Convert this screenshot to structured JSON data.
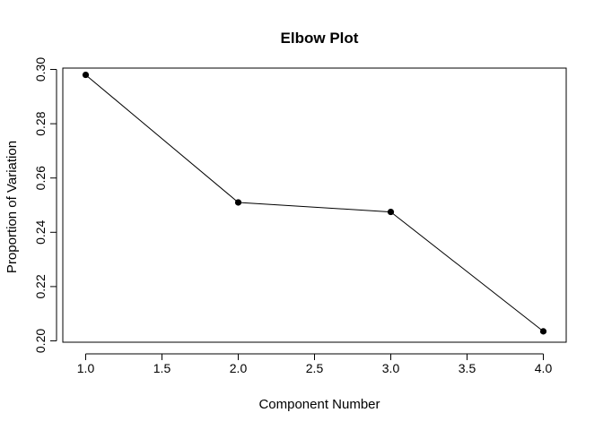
{
  "chart_data": {
    "type": "line",
    "title": "Elbow Plot",
    "xlabel": "Component Number",
    "ylabel": "Proportion of Variation",
    "x": [
      1.0,
      2.0,
      3.0,
      4.0
    ],
    "y": [
      0.298,
      0.251,
      0.2475,
      0.2035
    ],
    "xlim": [
      0.85,
      4.15
    ],
    "ylim": [
      0.1995,
      0.3005
    ],
    "xticks": [
      1.0,
      1.5,
      2.0,
      2.5,
      3.0,
      3.5,
      4.0
    ],
    "xtick_labels": [
      "1.0",
      "1.5",
      "2.0",
      "2.5",
      "3.0",
      "3.5",
      "4.0"
    ],
    "yticks": [
      0.2,
      0.22,
      0.24,
      0.26,
      0.28,
      0.3
    ],
    "ytick_labels": [
      "0.20",
      "0.22",
      "0.24",
      "0.26",
      "0.28",
      "0.30"
    ],
    "markers": "filled-circle",
    "grid": false,
    "legend": "none"
  }
}
